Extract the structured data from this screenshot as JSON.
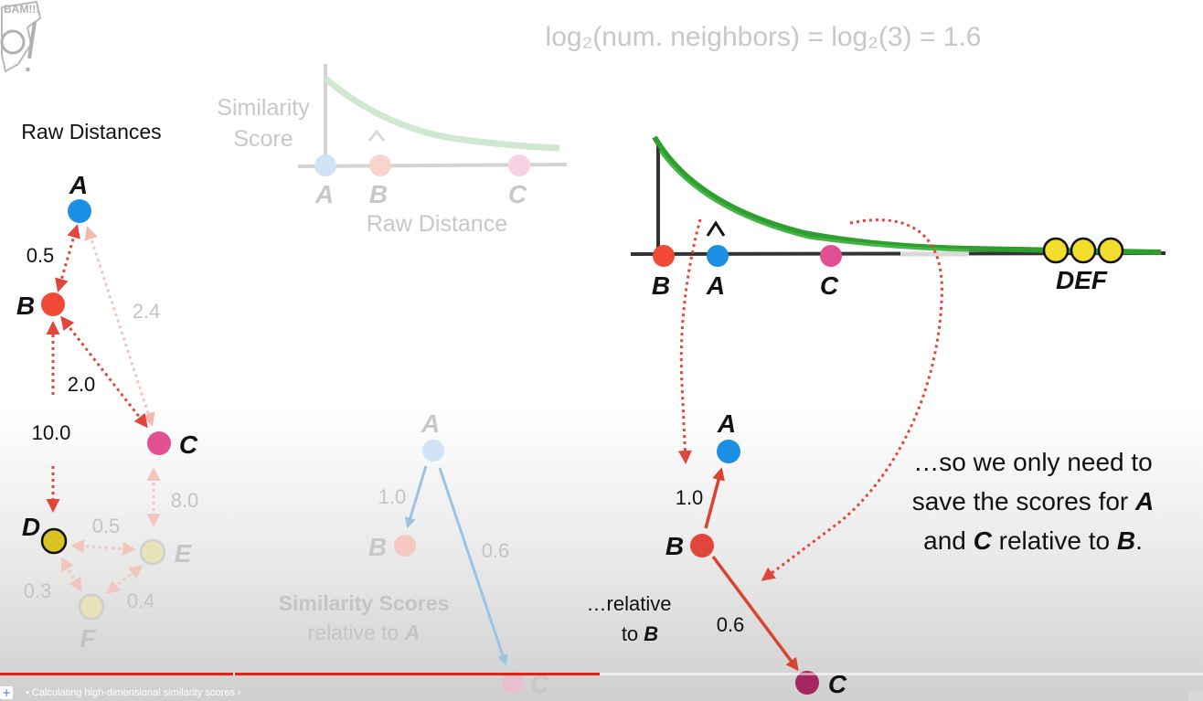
{
  "formula": "log₂(num. neighbors) = log₂(3) = 1.6",
  "raw_distances": {
    "title": "Raw Distances",
    "points": {
      "A": "A",
      "B": "B",
      "C": "C",
      "D": "D",
      "E": "E",
      "F": "F"
    },
    "edges": {
      "AB": "0.5",
      "AC": "2.4",
      "BC": "2.0",
      "BD": "10.0",
      "CE": "8.0",
      "DE": "0.5",
      "DF": "0.3",
      "EF": "0.4"
    }
  },
  "faded_curve": {
    "y_label_line1": "Similarity",
    "y_label_line2": "Score",
    "x_label": "Raw Distance",
    "points": [
      "A",
      "B",
      "C"
    ]
  },
  "main_curve": {
    "points": [
      "B",
      "A",
      "C"
    ],
    "far_points": "DEF"
  },
  "faded_scores": {
    "A": "A",
    "B": "B",
    "C": "C",
    "AB": "1.0",
    "AC": "0.6",
    "caption_line1": "Similarity Scores",
    "caption_line2_prefix": "relative to ",
    "caption_line2_emph": "A"
  },
  "scores_b": {
    "A": "A",
    "B": "B",
    "C": "C",
    "BA": "1.0",
    "BC": "0.6",
    "caption_line1": "…relative",
    "caption_line2_prefix": "to ",
    "caption_line2_emph": "B"
  },
  "note": {
    "line1": "…so we only need to",
    "line2_prefix": "save the scores for ",
    "line2_emph": "A",
    "line3_prefix": "and ",
    "line3_emph1": "C",
    "line3_mid": " relative to ",
    "line3_emph2": "B",
    "line3_suffix": "."
  },
  "logo_text": "BAM!!!",
  "player": {
    "chapter": "• Calculating high-dimensional similarity scores ›",
    "add_symbol": "+",
    "progress": 0.5
  },
  "colors": {
    "blue": "#1a8fe3",
    "red": "#f04a37",
    "pink": "#e34f93",
    "yellow": "#e8d424",
    "green": "#2e9e2e",
    "arrow_red": "#e0463b",
    "youtube_red": "#e62117"
  }
}
